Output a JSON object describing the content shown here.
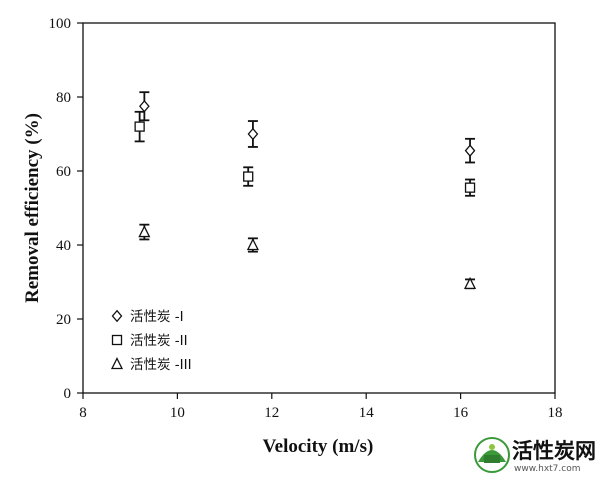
{
  "chart_data": {
    "type": "scatter",
    "xlabel": "Velocity (m/s)",
    "ylabel": "Removal efficiency (%)",
    "xlim": [
      8,
      18
    ],
    "ylim": [
      0,
      100
    ],
    "xticks": [
      8,
      10,
      12,
      14,
      16,
      18
    ],
    "yticks": [
      0,
      20,
      40,
      60,
      80,
      100
    ],
    "grid": false,
    "legend_position": "bottom-left",
    "series": [
      {
        "name": "活性炭 -I",
        "marker": "diamond",
        "x": [
          9.3,
          11.6,
          16.2
        ],
        "y": [
          77.5,
          70.0,
          65.5
        ],
        "err": [
          3.8,
          3.5,
          3.2
        ]
      },
      {
        "name": "活性炭 -II",
        "marker": "square",
        "x": [
          9.2,
          11.5,
          16.2
        ],
        "y": [
          72.0,
          58.5,
          55.5
        ],
        "err": [
          4.0,
          2.5,
          2.2
        ]
      },
      {
        "name": "活性炭 -III",
        "marker": "triangle",
        "x": [
          9.3,
          11.6,
          16.2
        ],
        "y": [
          43.5,
          40.0,
          29.5
        ],
        "err": [
          2.0,
          1.8,
          1.2
        ]
      }
    ]
  },
  "watermark": {
    "text": "活性炭网",
    "url": "www.hxt7.com",
    "logo_text": "活性炭网"
  }
}
